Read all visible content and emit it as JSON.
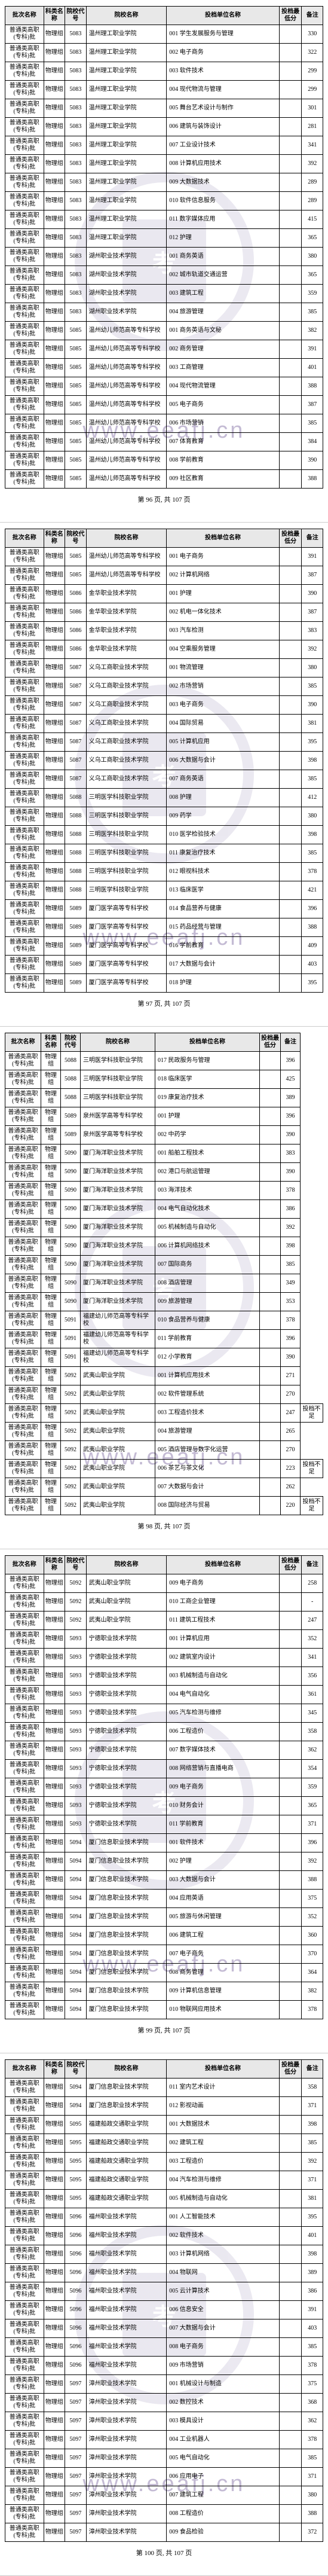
{
  "headers": [
    "批次名称",
    "科类名称",
    "院校代号",
    "院校名称",
    "投档单位名称",
    "投档最低分",
    "备注"
  ],
  "watermark_url": "www.eeafj.cn",
  "watermark_seal": "考",
  "footer_template": "第 {n} 页, 共 107 页",
  "pages": [
    {
      "num": 96,
      "rows": [
        [
          "普通类高职(专科)批",
          "物理组",
          "5083",
          "温州理工职业学院",
          "001 学生发展服务与管理",
          "",
          "330"
        ],
        [
          "普通类高职(专科)批",
          "物理组",
          "5083",
          "温州理工职业学院",
          "002 电子商务",
          "",
          "322"
        ],
        [
          "普通类高职(专科)批",
          "物理组",
          "5083",
          "温州理工职业学院",
          "003 软件技术",
          "",
          "299"
        ],
        [
          "普通类高职(专科)批",
          "物理组",
          "5083",
          "温州理工职业学院",
          "004 现代物流与管理",
          "",
          "299"
        ],
        [
          "普通类高职(专科)批",
          "物理组",
          "5083",
          "温州理工职业学院",
          "005 舞台艺术设计与制作",
          "",
          "301"
        ],
        [
          "普通类高职(专科)批",
          "物理组",
          "5083",
          "温州理工职业学院",
          "006 建筑与装饰设计",
          "",
          "281"
        ],
        [
          "普通类高职(专科)批",
          "物理组",
          "5083",
          "温州理工职业学院",
          "007 工业设计技术",
          "",
          "341"
        ],
        [
          "普通类高职(专科)批",
          "物理组",
          "5083",
          "温州理工职业学院",
          "008 计算机应用技术",
          "",
          "392"
        ],
        [
          "普通类高职(专科)批",
          "物理组",
          "5083",
          "温州理工职业学院",
          "009 大数据技术",
          "",
          "289"
        ],
        [
          "普通类高职(专科)批",
          "物理组",
          "5083",
          "温州理工职业学院",
          "010 软件信息服务",
          "",
          "289"
        ],
        [
          "普通类高职(专科)批",
          "物理组",
          "5083",
          "温州理工职业学院",
          "011 数字媒体应用",
          "",
          "415"
        ],
        [
          "普通类高职(专科)批",
          "物理组",
          "5083",
          "温州理工职业学院",
          "012 护理",
          "",
          "365"
        ],
        [
          "普通类高职(专科)批",
          "物理组",
          "5083",
          "湖州职业技术学院",
          "001 商务英语",
          "",
          "380"
        ],
        [
          "普通类高职(专科)批",
          "物理组",
          "5083",
          "湖州职业技术学院",
          "002 城市轨道交通运营",
          "",
          "365"
        ],
        [
          "普通类高职(专科)批",
          "物理组",
          "5083",
          "湖州职业技术学院",
          "003 建筑工程",
          "",
          "359"
        ],
        [
          "普通类高职(专科)批",
          "物理组",
          "5083",
          "湖州职业技术学院",
          "004 旅游管理",
          "",
          "385"
        ],
        [
          "普通类高职(专科)批",
          "物理组",
          "5085",
          "温州幼儿师范高等专科学校",
          "001 商务英语与文秘",
          "",
          "382"
        ],
        [
          "普通类高职(专科)批",
          "物理组",
          "5085",
          "温州幼儿师范高等专科学校",
          "002 商务管理",
          "",
          "391"
        ],
        [
          "普通类高职(专科)批",
          "物理组",
          "5085",
          "温州幼儿师范高等专科学校",
          "003 工商管理",
          "",
          "401"
        ],
        [
          "普通类高职(专科)批",
          "物理组",
          "5085",
          "温州幼儿师范高等专科学校",
          "004 现代物流管理",
          "",
          "388"
        ],
        [
          "普通类高职(专科)批",
          "物理组",
          "5085",
          "温州幼儿师范高等专科学校",
          "005 电子商务",
          "",
          "387"
        ],
        [
          "普通类高职(专科)批",
          "物理组",
          "5085",
          "温州幼儿师范高等专科学校",
          "006 市场营销",
          "",
          "385"
        ],
        [
          "普通类高职(专科)批",
          "物理组",
          "5085",
          "温州幼儿师范高等专科学校",
          "007 体育教育",
          "",
          "384"
        ],
        [
          "普通类高职(专科)批",
          "物理组",
          "5085",
          "温州幼儿师范高等专科学校",
          "008 学前教育",
          "",
          "390"
        ],
        [
          "普通类高职(专科)批",
          "物理组",
          "5085",
          "温州幼儿师范高等专科学校",
          "009 社区教育",
          "",
          "388"
        ]
      ]
    },
    {
      "num": 97,
      "rows": [
        [
          "普通类高职(专科)批",
          "物理组",
          "5085",
          "温州幼儿师范高等专科学校",
          "001 电子商务",
          "",
          "391"
        ],
        [
          "普通类高职(专科)批",
          "物理组",
          "5085",
          "温州幼儿师范高等专科学校",
          "002 计算机网络",
          "",
          "387"
        ],
        [
          "普通类高职(专科)批",
          "物理组",
          "5086",
          "金华职业技术学院",
          "001 护理",
          "",
          "390"
        ],
        [
          "普通类高职(专科)批",
          "物理组",
          "5086",
          "金华职业技术学院",
          "002 机电一体化技术",
          "",
          "387"
        ],
        [
          "普通类高职(专科)批",
          "物理组",
          "5086",
          "金华职业技术学院",
          "003 汽车检测",
          "",
          "383"
        ],
        [
          "普通类高职(专科)批",
          "物理组",
          "5086",
          "金华职业技术学院",
          "004 空乘服务管理",
          "",
          "392"
        ],
        [
          "普通类高职(专科)批",
          "物理组",
          "5087",
          "义乌工商职业技术学院",
          "001 物流管理",
          "",
          "380"
        ],
        [
          "普通类高职(专科)批",
          "物理组",
          "5087",
          "义乌工商职业技术学院",
          "002 市场营销",
          "",
          "385"
        ],
        [
          "普通类高职(专科)批",
          "物理组",
          "5087",
          "义乌工商职业技术学院",
          "003 电子商务",
          "",
          "390"
        ],
        [
          "普通类高职(专科)批",
          "物理组",
          "5087",
          "义乌工商职业技术学院",
          "004 国际贸易",
          "",
          "381"
        ],
        [
          "普通类高职(专科)批",
          "物理组",
          "5087",
          "义乌工商职业技术学院",
          "005 计算机应用",
          "",
          "395"
        ],
        [
          "普通类高职(专科)批",
          "物理组",
          "5087",
          "义乌工商职业技术学院",
          "006 大数据与会计",
          "",
          "398"
        ],
        [
          "普通类高职(专科)批",
          "物理组",
          "5087",
          "义乌工商职业技术学院",
          "007 商务英语",
          "",
          "385"
        ],
        [
          "普通类高职(专科)批",
          "物理组",
          "5088",
          "三明医学科技职业学院",
          "008 护理",
          "",
          "412"
        ],
        [
          "普通类高职(专科)批",
          "物理组",
          "5088",
          "三明医学科技职业学院",
          "009 药学",
          "",
          "380"
        ],
        [
          "普通类高职(专科)批",
          "物理组",
          "5088",
          "三明医学科技职业学院",
          "010 医学检验技术",
          "",
          "398"
        ],
        [
          "普通类高职(专科)批",
          "物理组",
          "5088",
          "三明医学科技职业学院",
          "011 康复治疗技术",
          "",
          "385"
        ],
        [
          "普通类高职(专科)批",
          "物理组",
          "5088",
          "三明医学科技职业学院",
          "012 眼视科技术",
          "",
          "378"
        ],
        [
          "普通类高职(专科)批",
          "物理组",
          "5088",
          "三明医学科技职业学院",
          "013 临床医学",
          "",
          "421"
        ],
        [
          "普通类高职(专科)批",
          "物理组",
          "5089",
          "厦门医学高等专科学校",
          "014 食品营养与健康",
          "",
          "396"
        ],
        [
          "普通类高职(专科)批",
          "物理组",
          "5089",
          "厦门医学高等专科学校",
          "015 药品经营与管理",
          "",
          "388"
        ],
        [
          "普通类高职(专科)批",
          "物理组",
          "5089",
          "厦门医学高等专科学校",
          "016 学前教育",
          "",
          "409"
        ],
        [
          "普通类高职(专科)批",
          "物理组",
          "5089",
          "厦门医学高等专科学校",
          "017 大数据与会计",
          "",
          "403"
        ],
        [
          "普通类高职(专科)批",
          "物理组",
          "5089",
          "厦门医学高等专科学校",
          "018 护理",
          "",
          "395"
        ]
      ]
    },
    {
      "num": 98,
      "rows": [
        [
          "普通类高职(专科)批",
          "物理组",
          "5088",
          "三明医学科技职业学院",
          "017 民政服务与管理",
          "",
          "396"
        ],
        [
          "普通类高职(专科)批",
          "物理组",
          "5088",
          "三明医学科技职业学院",
          "018 临床医学",
          "",
          "425"
        ],
        [
          "普通类高职(专科)批",
          "物理组",
          "5088",
          "三明医学科技职业学院",
          "019 康复治疗技术",
          "",
          "389"
        ],
        [
          "普通类高职(专科)批",
          "物理组",
          "5089",
          "泉州医学高等专科学校",
          "001 护理",
          "",
          "396"
        ],
        [
          "普通类高职(专科)批",
          "物理组",
          "5089",
          "泉州医学高等专科学校",
          "002 中药学",
          "",
          "390"
        ],
        [
          "普通类高职(专科)批",
          "物理组",
          "5090",
          "厦门海洋职业技术学院",
          "001 船舶工程技术",
          "",
          "383"
        ],
        [
          "普通类高职(专科)批",
          "物理组",
          "5090",
          "厦门海洋职业技术学院",
          "002 港口与航运管理",
          "",
          "390"
        ],
        [
          "普通类高职(专科)批",
          "物理组",
          "5090",
          "厦门海洋职业技术学院",
          "003 海洋技术",
          "",
          "378"
        ],
        [
          "普通类高职(专科)批",
          "物理组",
          "5090",
          "厦门海洋职业技术学院",
          "004 电气自动化技术",
          "",
          "386"
        ],
        [
          "普通类高职(专科)批",
          "物理组",
          "5090",
          "厦门海洋职业技术学院",
          "005 机械制造与自动化",
          "",
          "392"
        ],
        [
          "普通类高职(专科)批",
          "物理组",
          "5090",
          "厦门海洋职业技术学院",
          "006 计算机网络技术",
          "",
          "398"
        ],
        [
          "普通类高职(专科)批",
          "物理组",
          "5090",
          "厦门海洋职业技术学院",
          "007 国际商务",
          "",
          "385"
        ],
        [
          "普通类高职(专科)批",
          "物理组",
          "5090",
          "厦门海洋职业技术学院",
          "008 酒店管理",
          "",
          "349"
        ],
        [
          "普通类高职(专科)批",
          "物理组",
          "5090",
          "厦门海洋职业技术学院",
          "009 旅游管理",
          "",
          "353"
        ],
        [
          "普通类高职(专科)批",
          "物理组",
          "5091",
          "福建幼儿师范高等专科学校",
          "010 食品营养与健康",
          "",
          "378"
        ],
        [
          "普通类高职(专科)批",
          "物理组",
          "5091",
          "福建幼儿师范高等专科学校",
          "011 学前教育",
          "",
          "396"
        ],
        [
          "普通类高职(专科)批",
          "物理组",
          "5091",
          "福建幼儿师范高等专科学校",
          "012 小学教育",
          "",
          "390"
        ],
        [
          "普通类高职(专科)批",
          "物理组",
          "5092",
          "武夷山职业学院",
          "001 计算机应用技术",
          "",
          "271"
        ],
        [
          "普通类高职(专科)批",
          "物理组",
          "5092",
          "武夷山职业学院",
          "002 软件管理系统",
          "",
          "270"
        ],
        [
          "普通类高职(专科)批",
          "物理组",
          "5092",
          "武夷山职业学院",
          "003 工程造价技术",
          "",
          "247",
          "投档不足"
        ],
        [
          "普通类高职(专科)批",
          "物理组",
          "5092",
          "武夷山职业学院",
          "004 旅游管理",
          "",
          "265"
        ],
        [
          "普通类高职(专科)批",
          "物理组",
          "5092",
          "武夷山职业学院",
          "005 酒店管理与数字化运营",
          "",
          "270"
        ],
        [
          "普通类高职(专科)批",
          "物理组",
          "5092",
          "武夷山职业学院",
          "006 茶艺与茶文化",
          "",
          "223",
          "投档不足"
        ],
        [
          "普通类高职(专科)批",
          "物理组",
          "5092",
          "武夷山职业学院",
          "007 大数据与会计",
          "",
          "262"
        ],
        [
          "普通类高职(专科)批",
          "物理组",
          "5092",
          "武夷山职业学院",
          "008 国际经济与贸易",
          "",
          "220",
          "投档不足"
        ]
      ]
    },
    {
      "num": 99,
      "rows": [
        [
          "普通类高职(专科)批",
          "物理组",
          "5092",
          "武夷山职业学院",
          "009 电子商务",
          "",
          "258"
        ],
        [
          "普通类高职(专科)批",
          "物理组",
          "5092",
          "武夷山职业学院",
          "010 工商企业管理",
          "",
          "-"
        ],
        [
          "普通类高职(专科)批",
          "物理组",
          "5092",
          "武夷山职业学院",
          "011 建筑工程技术",
          "",
          "247"
        ],
        [
          "普通类高职(专科)批",
          "物理组",
          "5093",
          "宁德职业技术学院",
          "001 计算机应用",
          "",
          "352"
        ],
        [
          "普通类高职(专科)批",
          "物理组",
          "5093",
          "宁德职业技术学院",
          "002 建筑室内设计",
          "",
          "341"
        ],
        [
          "普通类高职(专科)批",
          "物理组",
          "5093",
          "宁德职业技术学院",
          "003 机械制造与自动化",
          "",
          "356"
        ],
        [
          "普通类高职(专科)批",
          "物理组",
          "5093",
          "宁德职业技术学院",
          "004 电气自动化",
          "",
          "361"
        ],
        [
          "普通类高职(专科)批",
          "物理组",
          "5093",
          "宁德职业技术学院",
          "005 汽车检测与维修",
          "",
          "345"
        ],
        [
          "普通类高职(专科)批",
          "物理组",
          "5093",
          "宁德职业技术学院",
          "006 工程造价",
          "",
          "358"
        ],
        [
          "普通类高职(专科)批",
          "物理组",
          "5093",
          "宁德职业技术学院",
          "007 数字媒体技术",
          "",
          "362"
        ],
        [
          "普通类高职(专科)批",
          "物理组",
          "5093",
          "宁德职业技术学院",
          "008 网络营销与直播电商",
          "",
          "354"
        ],
        [
          "普通类高职(专科)批",
          "物理组",
          "5093",
          "宁德职业技术学院",
          "009 电子商务",
          "",
          "359"
        ],
        [
          "普通类高职(专科)批",
          "物理组",
          "5093",
          "宁德职业技术学院",
          "010 财务会计",
          "",
          "365"
        ],
        [
          "普通类高职(专科)批",
          "物理组",
          "5093",
          "宁德职业技术学院",
          "011 学前教育",
          "",
          "371"
        ],
        [
          "普通类高职(专科)批",
          "物理组",
          "5094",
          "厦门信息职业技术学院",
          "001 软件技术",
          "",
          "396"
        ],
        [
          "普通类高职(专科)批",
          "物理组",
          "5094",
          "厦门信息职业技术学院",
          "002 护理",
          "",
          "392"
        ],
        [
          "普通类高职(专科)批",
          "物理组",
          "5094",
          "厦门信息职业技术学院",
          "003 大数据与会计",
          "",
          "388"
        ],
        [
          "普通类高职(专科)批",
          "物理组",
          "5094",
          "厦门信息职业技术学院",
          "004 应用英语",
          "",
          "375"
        ],
        [
          "普通类高职(专科)批",
          "物理组",
          "5094",
          "厦门信息职业技术学院",
          "005 旅游与休闲管理",
          "",
          "352"
        ],
        [
          "普通类高职(专科)批",
          "物理组",
          "5094",
          "厦门信息职业技术学院",
          "006 建筑工程",
          "",
          "360"
        ],
        [
          "普通类高职(专科)批",
          "物理组",
          "5094",
          "厦门信息职业技术学院",
          "007 电子商务",
          "",
          "370"
        ],
        [
          "普通类高职(专科)批",
          "物理组",
          "5094",
          "厦门信息职业技术学院",
          "008 商务管理",
          "",
          "364"
        ],
        [
          "普通类高职(专科)批",
          "物理组",
          "5094",
          "厦门信息职业技术学院",
          "009 计算机信息管理",
          "",
          "382"
        ],
        [
          "普通类高职(专科)批",
          "物理组",
          "5094",
          "厦门信息职业技术学院",
          "010 物联网应用技术",
          "",
          "378"
        ]
      ]
    },
    {
      "num": 100,
      "rows": [
        [
          "普通类高职(专科)批",
          "物理组",
          "5094",
          "厦门信息职业技术学院",
          "011 室内艺术设计",
          "",
          "358"
        ],
        [
          "普通类高职(专科)批",
          "物理组",
          "5094",
          "厦门信息职业技术学院",
          "012 影视动画",
          "",
          "371"
        ],
        [
          "普通类高职(专科)批",
          "物理组",
          "5095",
          "福建船政交通职业学院",
          "001 大数据技术",
          "",
          "398"
        ],
        [
          "普通类高职(专科)批",
          "物理组",
          "5095",
          "福建船政交通职业学院",
          "002 建筑工程",
          "",
          "385"
        ],
        [
          "普通类高职(专科)批",
          "物理组",
          "5095",
          "福建船政交通职业学院",
          "003 工程造价",
          "",
          "392"
        ],
        [
          "普通类高职(专科)批",
          "物理组",
          "5095",
          "福建船政交通职业学院",
          "004 汽车检测与维修",
          "",
          "371"
        ],
        [
          "普通类高职(专科)批",
          "物理组",
          "5095",
          "福建船政交通职业学院",
          "005 机械制造与自动化",
          "",
          "381"
        ],
        [
          "普通类高职(专科)批",
          "物理组",
          "5096",
          "福州职业技术学院",
          "001 人工智能技术",
          "",
          "395"
        ],
        [
          "普通类高职(专科)批",
          "物理组",
          "5096",
          "福州职业技术学院",
          "002 软件技术",
          "",
          "401"
        ],
        [
          "普通类高职(专科)批",
          "物理组",
          "5096",
          "福州职业技术学院",
          "003 计算机网络",
          "",
          "398"
        ],
        [
          "普通类高职(专科)批",
          "物理组",
          "5096",
          "福州职业技术学院",
          "004 物联网",
          "",
          "389"
        ],
        [
          "普通类高职(专科)批",
          "物理组",
          "5096",
          "福州职业技术学院",
          "005 云计算技术",
          "",
          "386"
        ],
        [
          "普通类高职(专科)批",
          "物理组",
          "5096",
          "福州职业技术学院",
          "006 信息安全",
          "",
          "391"
        ],
        [
          "普通类高职(专科)批",
          "物理组",
          "5096",
          "福州职业技术学院",
          "007 大数据与会计",
          "",
          "403"
        ],
        [
          "普通类高职(专科)批",
          "物理组",
          "5096",
          "福州职业技术学院",
          "008 电子商务",
          "",
          "385"
        ],
        [
          "普通类高职(专科)批",
          "物理组",
          "5096",
          "福州职业技术学院",
          "009 市场营销",
          "",
          "378"
        ],
        [
          "普通类高职(专科)批",
          "物理组",
          "5097",
          "漳州职业技术学院",
          "001 机械设计与制造",
          "",
          "375"
        ],
        [
          "普通类高职(专科)批",
          "物理组",
          "5097",
          "漳州职业技术学院",
          "002 数控技术",
          "",
          "368"
        ],
        [
          "普通类高职(专科)批",
          "物理组",
          "5097",
          "漳州职业技术学院",
          "003 模具设计",
          "",
          "362"
        ],
        [
          "普通类高职(专科)批",
          "物理组",
          "5097",
          "漳州职业技术学院",
          "004 工业机器人",
          "",
          "378"
        ],
        [
          "普通类高职(专科)批",
          "物理组",
          "5097",
          "漳州职业技术学院",
          "005 电气自动化",
          "",
          "385"
        ],
        [
          "普通类高职(专科)批",
          "物理组",
          "5097",
          "漳州职业技术学院",
          "006 应用电子",
          "",
          "371"
        ],
        [
          "普通类高职(专科)批",
          "物理组",
          "5097",
          "漳州职业技术学院",
          "007 建筑工程",
          "",
          "380"
        ],
        [
          "普通类高职(专科)批",
          "物理组",
          "5097",
          "漳州职业技术学院",
          "008 工程造价",
          "",
          "388"
        ],
        [
          "普通类高职(专科)批",
          "物理组",
          "5097",
          "漳州职业技术学院",
          "009 食品检验",
          "",
          "372"
        ]
      ]
    }
  ]
}
